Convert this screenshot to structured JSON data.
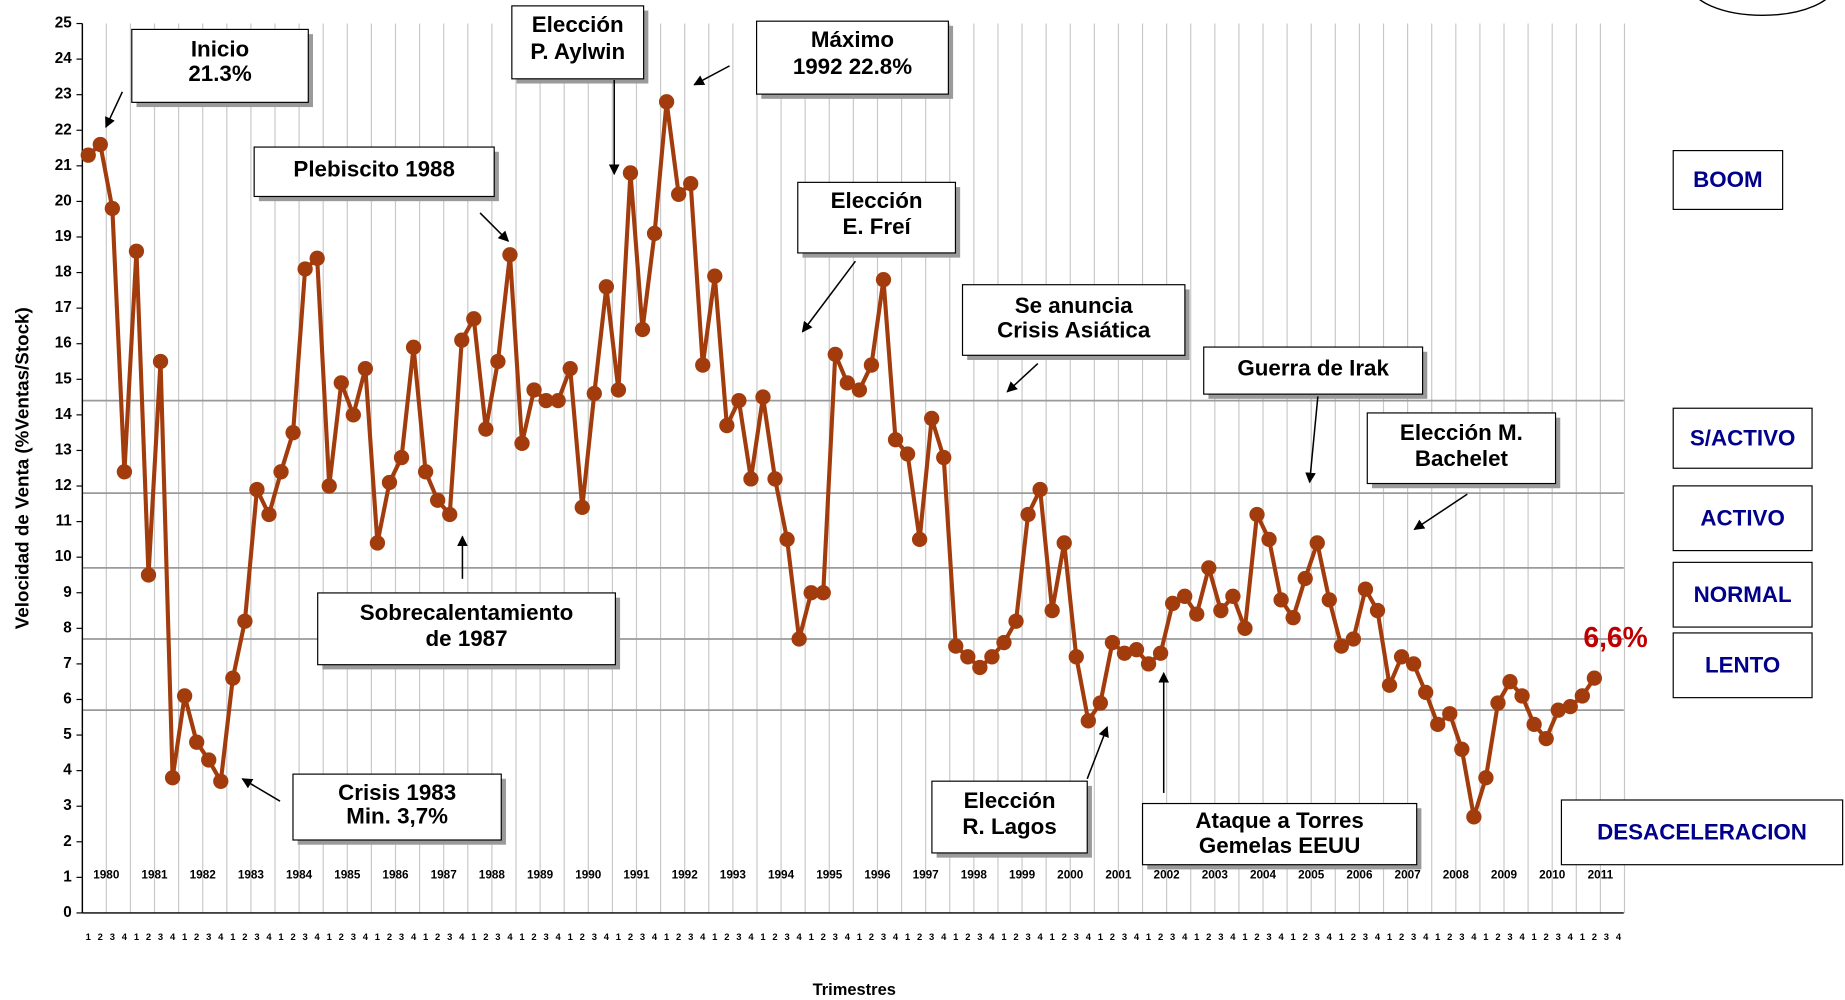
{
  "chart_data": {
    "type": "line",
    "y_label": "Velocidad de Venta (%Ventas/Stock)",
    "x_label": "Trimestres",
    "categories": [
      "1",
      "2",
      "3",
      "4",
      "1",
      "2",
      "3",
      "4",
      "1",
      "2",
      "3",
      "4",
      "1",
      "2",
      "3",
      "4",
      "1",
      "2",
      "3",
      "4",
      "1",
      "2",
      "3",
      "4",
      "1",
      "2",
      "3",
      "4",
      "1",
      "2",
      "3",
      "4",
      "1",
      "2",
      "3",
      "4",
      "1",
      "2",
      "3",
      "4",
      "1",
      "2",
      "3",
      "4",
      "1",
      "2",
      "3",
      "4",
      "1",
      "2",
      "3",
      "4",
      "1",
      "2",
      "3",
      "4",
      "1",
      "2",
      "3",
      "4",
      "1",
      "2",
      "3",
      "4",
      "1",
      "2",
      "3",
      "4",
      "1",
      "2",
      "3",
      "4",
      "1",
      "2",
      "3",
      "4",
      "1",
      "2",
      "3",
      "4",
      "1",
      "2",
      "3",
      "4",
      "1",
      "2",
      "3",
      "4",
      "1",
      "2",
      "3",
      "4",
      "1",
      "2",
      "3",
      "4",
      "1",
      "2",
      "3",
      "4",
      "1",
      "2",
      "3",
      "4",
      "1",
      "2",
      "3",
      "4",
      "1",
      "2",
      "3",
      "4",
      "1",
      "2",
      "3",
      "4",
      "1",
      "2",
      "3",
      "4",
      "1",
      "2",
      "3",
      "4",
      "1",
      "2",
      "3",
      "4"
    ],
    "year_labels": [
      "1980",
      "1981",
      "1982",
      "1983",
      "1984",
      "1985",
      "1986",
      "1987",
      "1988",
      "1989",
      "1990",
      "1991",
      "1992",
      "1993",
      "1994",
      "1995",
      "1996",
      "1997",
      "1998",
      "1999",
      "2000",
      "2001",
      "2002",
      "2003",
      "2004",
      "2005",
      "2006",
      "2007",
      "2008",
      "2009",
      "2010",
      "2011"
    ],
    "color": "#a33c0d",
    "values": [
      21.3,
      21.6,
      19.8,
      12.4,
      18.6,
      9.5,
      15.5,
      3.8,
      6.1,
      4.8,
      4.3,
      3.7,
      6.6,
      8.2,
      11.9,
      11.2,
      12.4,
      13.5,
      18.1,
      18.4,
      12.0,
      14.9,
      14.0,
      15.3,
      10.4,
      12.1,
      12.8,
      15.9,
      12.4,
      11.6,
      11.2,
      16.1,
      16.7,
      13.6,
      15.5,
      18.5,
      13.2,
      14.7,
      14.4,
      14.4,
      15.3,
      11.4,
      14.6,
      17.6,
      14.7,
      20.8,
      16.4,
      19.1,
      22.8,
      20.2,
      20.5,
      15.4,
      17.9,
      13.7,
      14.4,
      12.2,
      14.5,
      12.2,
      10.5,
      7.7,
      9.0,
      9.0,
      15.7,
      14.9,
      14.7,
      15.4,
      17.8,
      13.3,
      12.9,
      10.5,
      13.9,
      12.8,
      7.5,
      7.2,
      6.9,
      7.2,
      7.6,
      8.2,
      11.2,
      11.9,
      8.5,
      10.4,
      7.2,
      5.4,
      5.9,
      7.6,
      7.3,
      7.4,
      7.0,
      7.3,
      8.7,
      8.9,
      8.4,
      9.7,
      8.5,
      8.9,
      8.0,
      11.2,
      10.5,
      8.8,
      8.3,
      9.4,
      10.4,
      8.8,
      7.5,
      7.7,
      9.1,
      8.5,
      6.4,
      7.2,
      7.0,
      6.2,
      5.3,
      5.6,
      4.6,
      2.7,
      3.8,
      5.9,
      6.5,
      6.1,
      5.3,
      4.9,
      5.7,
      5.8,
      6.1,
      6.6,
      null,
      null
    ],
    "value_labels": [
      null,
      null,
      null,
      null,
      null,
      null,
      null,
      null,
      null,
      null,
      null,
      null,
      null,
      null,
      null,
      null,
      null,
      null,
      null,
      null,
      null,
      null,
      null,
      null,
      null,
      null,
      null,
      null,
      null,
      null,
      null,
      null,
      null,
      null,
      null,
      null,
      null,
      null,
      null,
      null,
      null,
      null,
      null,
      null,
      null,
      null,
      null,
      null,
      null,
      null,
      null,
      null,
      null,
      null,
      null,
      null,
      null,
      null,
      null,
      null,
      null,
      null,
      null,
      null,
      null,
      null,
      null,
      null,
      null,
      null,
      null,
      null,
      null,
      null,
      null,
      null,
      null,
      null,
      null,
      null,
      null,
      null,
      null,
      null,
      null,
      null,
      null,
      null,
      null,
      null,
      null,
      null,
      null,
      null,
      null,
      null,
      null,
      null,
      null,
      null,
      null,
      null,
      null,
      null,
      null,
      null,
      null,
      null,
      null,
      null,
      null,
      null,
      null,
      null,
      null,
      null,
      null,
      null,
      null,
      null,
      null,
      null,
      null,
      null,
      null,
      "6,6%",
      null,
      null
    ],
    "ylim": [
      0,
      25
    ],
    "yticks": [
      0,
      1,
      2,
      3,
      4,
      5,
      6,
      7,
      8,
      9,
      10,
      11,
      12,
      13,
      14,
      15,
      16,
      17,
      18,
      19,
      20,
      21,
      22,
      23,
      24,
      25
    ],
    "grid": true,
    "zone_lines": [
      14.4,
      11.8,
      9.7,
      7.7,
      5.7
    ],
    "zone_labels": [
      "BOOM",
      "S/ACTIVO",
      "ACTIVO",
      "NORMAL",
      "LENTO",
      "DESACELERACION"
    ],
    "annotations": [
      {
        "lines": [
          "Inicio",
          "21.3%"
        ]
      },
      {
        "lines": [
          "Elección",
          "P. Aylwin"
        ]
      },
      {
        "lines": [
          "Máximo",
          "1992 22.8%"
        ]
      },
      {
        "lines": [
          "Plebiscito 1988"
        ]
      },
      {
        "lines": [
          "Elección",
          "E. Freí"
        ]
      },
      {
        "lines": [
          "Se anuncia",
          "Crisis Asiática"
        ]
      },
      {
        "lines": [
          "Guerra de Irak"
        ]
      },
      {
        "lines": [
          "Elección M.",
          "Bachelet"
        ]
      },
      {
        "lines": [
          "Sobrecalentamiento",
          "de 1987"
        ]
      },
      {
        "lines": [
          "Crisis  1983",
          "Min. 3,7%"
        ]
      },
      {
        "lines": [
          "Elección",
          "R. Lagos"
        ]
      },
      {
        "lines": [
          "Ataque a Torres",
          "Gemelas EEUU"
        ]
      }
    ]
  }
}
